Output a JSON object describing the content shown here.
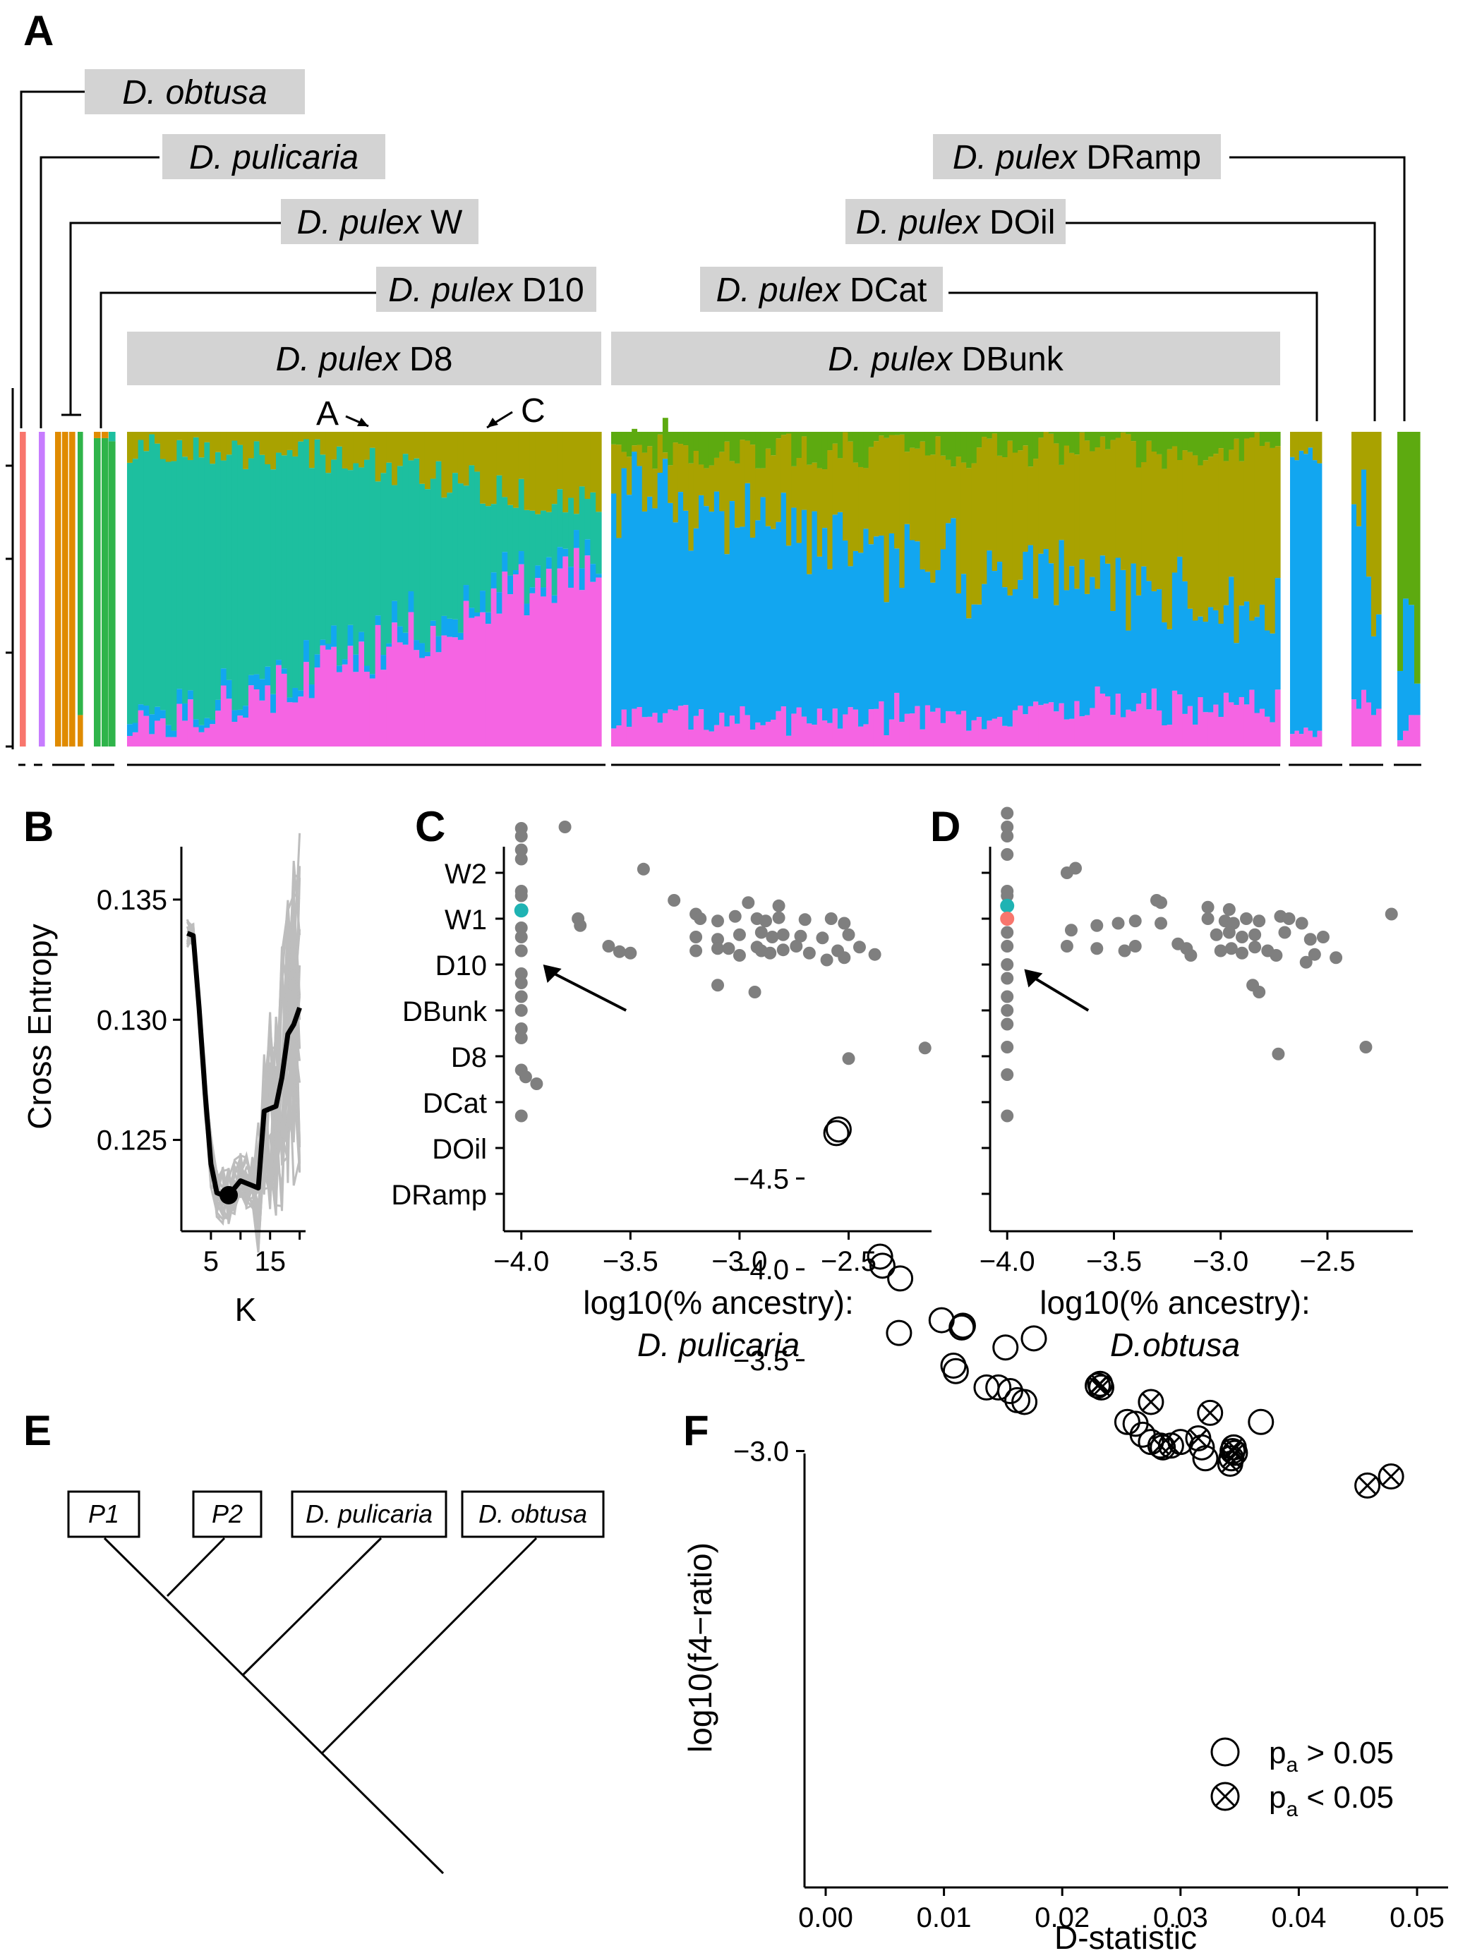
{
  "panels": {
    "A": {
      "letter": "A",
      "populations": [
        {
          "species": "D. obtusa",
          "suffix": ""
        },
        {
          "species": "D. pulicaria",
          "suffix": ""
        },
        {
          "species": "D. pulex",
          "suffix": " W"
        },
        {
          "species": "D. pulex",
          "suffix": " D10"
        },
        {
          "species": "D. pulex",
          "suffix": " D8"
        },
        {
          "species": "D. pulex",
          "suffix": " DBunk"
        },
        {
          "species": "D. pulex",
          "suffix": " DCat"
        },
        {
          "species": "D. pulex",
          "suffix": " DOil"
        },
        {
          "species": "D. pulex",
          "suffix": " DRamp"
        }
      ],
      "markers": [
        "A",
        "C"
      ],
      "colors": {
        "obtusa": "#F8766D",
        "pulicaria": "#C77CFF",
        "W": "#E08B00",
        "D10": "#2FB44A",
        "teal": "#1DBF9F",
        "pink": "#F564E3",
        "blue": "#12A6F0",
        "olive": "#A9A200",
        "green": "#5DAA10"
      }
    },
    "B": {
      "letter": "B",
      "chart_data": {
        "type": "line",
        "xlabel": "K",
        "ylabel": "Cross Entropy",
        "x_ticks": [
          "5",
          "15"
        ],
        "y_ticks": [
          "0.125",
          "0.130",
          "0.135"
        ],
        "xlim": [
          0,
          21
        ],
        "ylim": [
          0.1212,
          0.1372
        ],
        "mean_series": {
          "x": [
            1,
            2,
            3,
            4,
            5,
            6,
            7,
            8,
            9,
            10,
            11,
            12,
            13,
            14,
            15,
            16,
            17,
            18,
            19,
            20
          ],
          "y": [
            0.1336,
            0.1335,
            0.1305,
            0.127,
            0.124,
            0.1228,
            0.1227,
            0.1227,
            0.123,
            0.1233,
            0.1232,
            0.1231,
            0.123,
            0.1262,
            0.1263,
            0.1264,
            0.1276,
            0.1294,
            0.1298,
            0.1305
          ]
        },
        "best_k": {
          "x": 8,
          "y": 0.1227
        }
      }
    },
    "C": {
      "letter": "C",
      "chart_data": {
        "type": "scatter",
        "xlabel": "log10(% ancestry):",
        "xlabel_species": "D. pulicaria",
        "categories": [
          "W2",
          "W1",
          "D10",
          "DBunk",
          "D8",
          "DCat",
          "DOil",
          "DRamp"
        ],
        "x_ticks": [
          "−4.0",
          "−3.5",
          "−3.0",
          "−2.5"
        ],
        "xlim": [
          -4.08,
          -2.12
        ],
        "points_grey": [
          [
            -4.0,
            0.97
          ],
          [
            -4.0,
            0.8
          ],
          [
            -4.0,
            0.5
          ],
          [
            -4.0,
            0.3
          ],
          [
            -4.0,
            -0.4
          ],
          [
            -4.0,
            -0.5
          ],
          [
            -4.0,
            -1.2
          ],
          [
            -4.0,
            -1.4
          ],
          [
            -4.0,
            -1.7
          ],
          [
            -4.0,
            -2.2
          ],
          [
            -4.0,
            -2.4
          ],
          [
            -4.0,
            -2.7
          ],
          [
            -4.0,
            -3.0
          ],
          [
            -4.0,
            -3.4
          ],
          [
            -4.0,
            -3.6
          ],
          [
            -4.0,
            -4.3
          ],
          [
            -4.0,
            -5.3
          ],
          [
            -3.93,
            -4.6
          ],
          [
            -3.98,
            -4.45
          ],
          [
            -3.8,
            1.0
          ],
          [
            -3.44,
            0.08
          ],
          [
            -3.3,
            -0.6
          ],
          [
            -3.74,
            -1.0
          ],
          [
            -3.73,
            -1.15
          ],
          [
            -3.2,
            -0.9
          ],
          [
            -2.96,
            -0.65
          ],
          [
            -2.82,
            -0.72
          ],
          [
            -3.18,
            -1.0
          ],
          [
            -3.1,
            -1.05
          ],
          [
            -3.02,
            -0.95
          ],
          [
            -2.92,
            -1.0
          ],
          [
            -2.88,
            -1.05
          ],
          [
            -2.82,
            -0.98
          ],
          [
            -2.7,
            -1.02
          ],
          [
            -2.58,
            -1.0
          ],
          [
            -2.52,
            -1.1
          ],
          [
            -3.2,
            -1.4
          ],
          [
            -3.1,
            -1.45
          ],
          [
            -3.0,
            -1.35
          ],
          [
            -2.9,
            -1.3
          ],
          [
            -2.85,
            -1.4
          ],
          [
            -2.8,
            -1.35
          ],
          [
            -2.72,
            -1.38
          ],
          [
            -2.62,
            -1.42
          ],
          [
            -2.5,
            -1.35
          ],
          [
            -3.6,
            -1.6
          ],
          [
            -3.5,
            -1.75
          ],
          [
            -3.2,
            -1.7
          ],
          [
            -3.1,
            -1.65
          ],
          [
            -3.0,
            -1.8
          ],
          [
            -2.92,
            -1.62
          ],
          [
            -2.86,
            -1.75
          ],
          [
            -2.8,
            -1.68
          ],
          [
            -2.74,
            -1.6
          ],
          [
            -2.68,
            -1.75
          ],
          [
            -2.55,
            -1.7
          ],
          [
            -2.45,
            -1.62
          ],
          [
            -2.38,
            -1.78
          ],
          [
            -3.55,
            -1.72
          ],
          [
            -3.05,
            -1.65
          ],
          [
            -2.9,
            -1.7
          ],
          [
            -2.6,
            -1.9
          ],
          [
            -2.52,
            -1.85
          ],
          [
            -3.1,
            -2.45
          ],
          [
            -2.93,
            -2.6
          ],
          [
            -2.5,
            -4.05
          ],
          [
            -2.15,
            -3.82
          ]
        ],
        "points_teal": [
          [
            -4.0,
            -0.82
          ]
        ],
        "arrow_from": [
          -3.52,
          -3.0
        ],
        "arrow_to": [
          -3.9,
          -2.0
        ]
      }
    },
    "D": {
      "letter": "D",
      "chart_data": {
        "type": "scatter",
        "xlabel": "log10(% ancestry):",
        "xlabel_species": "D.obtusa",
        "categories": [
          "W2",
          "W1",
          "D10",
          "DBunk",
          "D8",
          "DCat",
          "DOil",
          "DRamp"
        ],
        "x_ticks": [
          "−4.0",
          "−3.5",
          "−3.0",
          "−2.5"
        ],
        "xlim": [
          -4.08,
          -2.1
        ],
        "points_grey": [
          [
            -4.0,
            1.3
          ],
          [
            -4.0,
            1.0
          ],
          [
            -4.0,
            0.8
          ],
          [
            -4.0,
            0.4
          ],
          [
            -4.0,
            -0.5
          ],
          [
            -4.0,
            -0.4
          ],
          [
            -4.0,
            -1.0
          ],
          [
            -4.0,
            -1.3
          ],
          [
            -4.0,
            -1.6
          ],
          [
            -4.0,
            -2.0
          ],
          [
            -4.0,
            -2.3
          ],
          [
            -4.0,
            -2.7
          ],
          [
            -4.0,
            -3.0
          ],
          [
            -4.0,
            -3.3
          ],
          [
            -4.0,
            -3.8
          ],
          [
            -4.0,
            -4.4
          ],
          [
            -4.0,
            -5.3
          ],
          [
            -3.72,
            0.0
          ],
          [
            -3.68,
            0.1
          ],
          [
            -3.3,
            -0.6
          ],
          [
            -3.28,
            -0.65
          ],
          [
            -3.06,
            -0.75
          ],
          [
            -2.96,
            -0.8
          ],
          [
            -3.7,
            -1.25
          ],
          [
            -3.58,
            -1.15
          ],
          [
            -3.48,
            -1.1
          ],
          [
            -3.4,
            -1.05
          ],
          [
            -3.28,
            -1.1
          ],
          [
            -3.06,
            -1.0
          ],
          [
            -2.98,
            -1.05
          ],
          [
            -2.94,
            -1.1
          ],
          [
            -2.88,
            -1.0
          ],
          [
            -2.82,
            -1.05
          ],
          [
            -2.72,
            -0.95
          ],
          [
            -2.68,
            -1.0
          ],
          [
            -2.62,
            -1.1
          ],
          [
            -2.2,
            -0.9
          ],
          [
            -3.02,
            -1.35
          ],
          [
            -2.96,
            -1.3
          ],
          [
            -2.9,
            -1.4
          ],
          [
            -2.84,
            -1.35
          ],
          [
            -2.7,
            -1.3
          ],
          [
            -2.58,
            -1.45
          ],
          [
            -2.52,
            -1.4
          ],
          [
            -3.72,
            -1.6
          ],
          [
            -3.58,
            -1.65
          ],
          [
            -3.45,
            -1.7
          ],
          [
            -3.4,
            -1.6
          ],
          [
            -3.2,
            -1.55
          ],
          [
            -3.16,
            -1.65
          ],
          [
            -3.14,
            -1.8
          ],
          [
            -3.0,
            -1.7
          ],
          [
            -2.95,
            -1.65
          ],
          [
            -2.9,
            -1.75
          ],
          [
            -2.84,
            -1.62
          ],
          [
            -2.78,
            -1.7
          ],
          [
            -2.74,
            -1.8
          ],
          [
            -2.6,
            -1.95
          ],
          [
            -2.56,
            -1.78
          ],
          [
            -2.46,
            -1.85
          ],
          [
            -2.85,
            -2.45
          ],
          [
            -2.82,
            -2.6
          ],
          [
            -2.32,
            -3.8
          ],
          [
            -2.73,
            -3.95
          ]
        ],
        "points_teal": [
          [
            -4.0,
            -0.72
          ]
        ],
        "points_red": [
          [
            -4.0,
            -1.0
          ]
        ],
        "arrow_from": [
          -3.62,
          -3.0
        ],
        "arrow_to": [
          -3.92,
          -2.1
        ]
      }
    },
    "E": {
      "letter": "E",
      "taxa": [
        "P1",
        "P2",
        "D. pulicaria",
        "D. obtusa"
      ]
    },
    "F": {
      "letter": "F",
      "chart_data": {
        "type": "scatter",
        "xlabel": "D-statistic",
        "ylabel": "log10(f4−ratio)",
        "x_ticks": [
          "0.00",
          "0.01",
          "0.02",
          "0.03",
          "0.04",
          "0.05"
        ],
        "y_ticks": [
          "−4.5",
          "−4.0",
          "−3.5",
          "−3.0"
        ],
        "xlim": [
          -0.002,
          0.05
        ],
        "ylim": [
          -4.95,
          -2.72
        ],
        "legend": [
          {
            "main": "p",
            "sub": "a",
            "text": " > 0.05"
          },
          {
            "main": "p",
            "sub": "a",
            "text": " < 0.05"
          }
        ],
        "legend_position": "bottom-right",
        "points_nonsig": [
          [
            0.0009,
            -4.75
          ],
          [
            0.0011,
            -4.77
          ],
          [
            0.0046,
            -4.07
          ],
          [
            0.0048,
            -4.02
          ],
          [
            0.0063,
            -3.95
          ],
          [
            0.0062,
            -3.65
          ],
          [
            0.0108,
            -3.47
          ],
          [
            0.011,
            -3.44
          ],
          [
            0.0098,
            -3.72
          ],
          [
            0.0115,
            -3.68
          ],
          [
            0.0116,
            -3.69
          ],
          [
            0.0136,
            -3.35
          ],
          [
            0.0146,
            -3.35
          ],
          [
            0.0156,
            -3.33
          ],
          [
            0.0168,
            -3.27
          ],
          [
            0.0162,
            -3.28
          ],
          [
            0.0152,
            -3.57
          ],
          [
            0.0176,
            -3.62
          ],
          [
            0.0255,
            -3.16
          ],
          [
            0.0262,
            -3.15
          ],
          [
            0.0268,
            -3.09
          ],
          [
            0.0275,
            -3.05
          ],
          [
            0.0285,
            -3.02
          ],
          [
            0.03,
            -3.05
          ],
          [
            0.0318,
            -3.02
          ],
          [
            0.0321,
            -2.96
          ],
          [
            0.0345,
            -3.02
          ],
          [
            0.0368,
            -3.16
          ]
        ],
        "points_sig": [
          [
            0.023,
            -3.36
          ],
          [
            0.0232,
            -3.37
          ],
          [
            0.0233,
            -3.35
          ],
          [
            0.0275,
            -3.27
          ],
          [
            0.0283,
            -3.03
          ],
          [
            0.0292,
            -3.03
          ],
          [
            0.0315,
            -3.07
          ],
          [
            0.0325,
            -3.21
          ],
          [
            0.0342,
            -2.93
          ],
          [
            0.0343,
            -2.96
          ],
          [
            0.0344,
            -3.0
          ],
          [
            0.0345,
            -3.02
          ],
          [
            0.0346,
            -2.99
          ],
          [
            0.0458,
            -2.81
          ],
          [
            0.0478,
            -2.86
          ]
        ]
      }
    }
  }
}
